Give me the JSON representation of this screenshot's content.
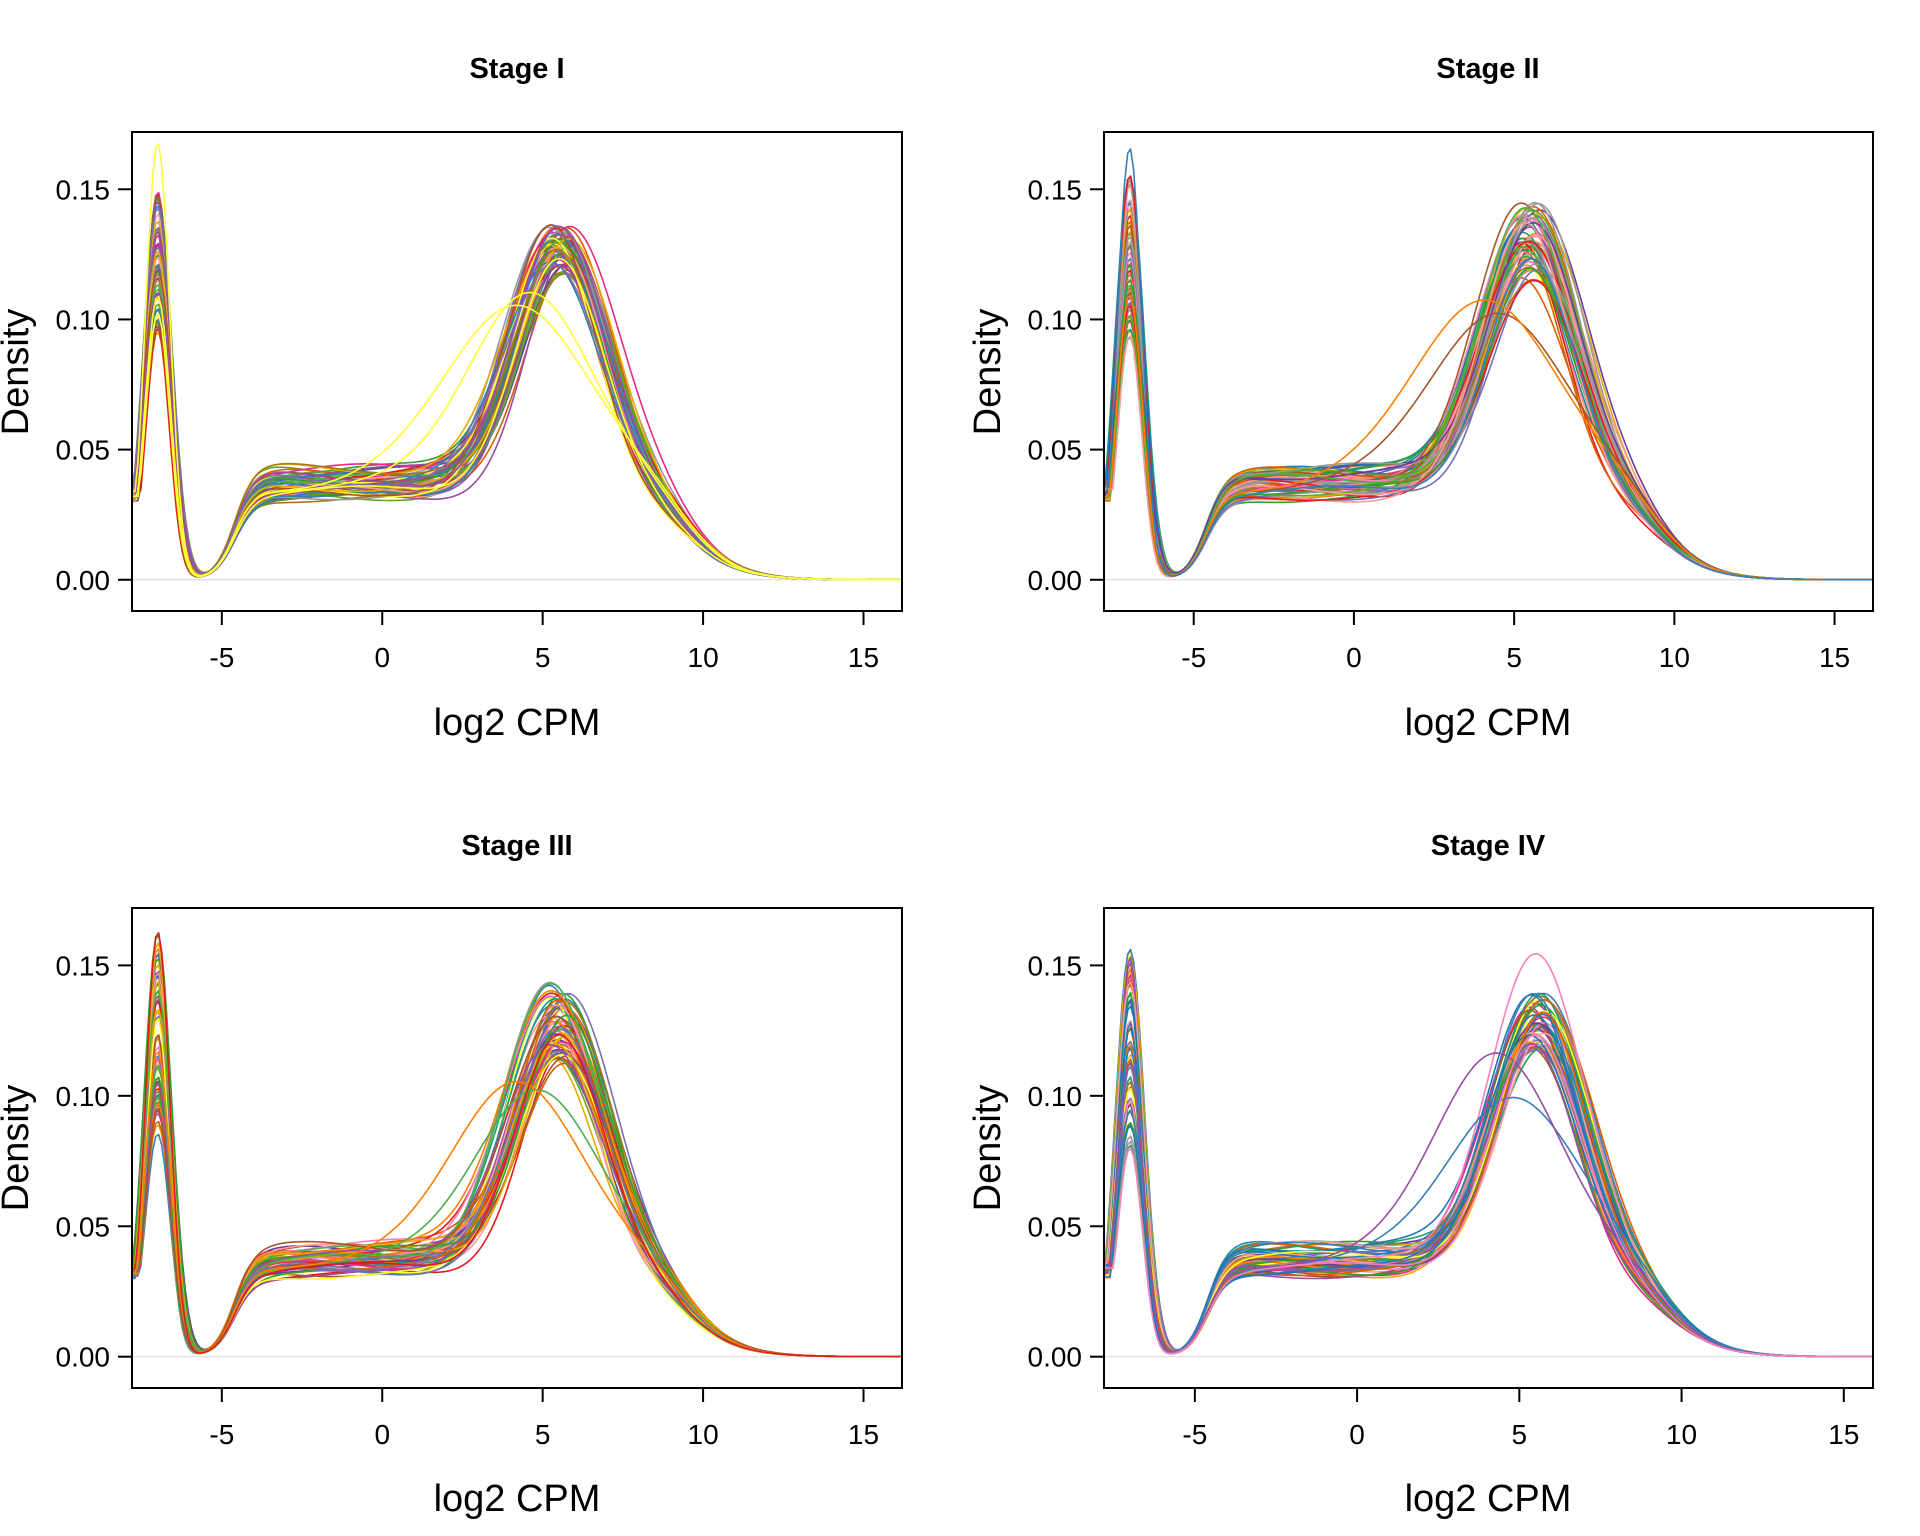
{
  "palette": [
    "#e41a1c",
    "#377eb8",
    "#4daf4a",
    "#984ea3",
    "#ff7f00",
    "#ffff33",
    "#a65628",
    "#f781bf",
    "#999999",
    "#1b9e77",
    "#d95f02",
    "#7570b3",
    "#e7298a",
    "#66a61e",
    "#e6ab02",
    "#a6761d",
    "#1f78b4",
    "#33a02c",
    "#fb9a99",
    "#6a3d9a"
  ],
  "chart_data": [
    {
      "type": "line",
      "title": "Stage I",
      "xlabel": "log2 CPM",
      "ylabel": "Density",
      "xlim": [
        -7.8,
        16.2
      ],
      "ylim": [
        -0.012,
        0.172
      ],
      "xticks": [
        -5,
        0,
        5,
        10,
        15
      ],
      "yticks": [
        0.0,
        0.05,
        0.1,
        0.15
      ],
      "xtick_labels": [
        "-5",
        "0",
        "5",
        "10",
        "15"
      ],
      "ytick_labels": [
        "0.00",
        "0.05",
        "0.10",
        "0.15"
      ],
      "n_series_estimated": 60,
      "representative_shape": {
        "x": [
          -7.8,
          -7.0,
          -5.0,
          -4.0,
          -2.0,
          0.0,
          2.0,
          4.0,
          5.5,
          7.0,
          8.5,
          10.0,
          12.0,
          15.0
        ],
        "y_range_low": [
          0.03,
          0.094,
          0.004,
          0.03,
          0.035,
          0.038,
          0.042,
          0.07,
          0.09,
          0.055,
          0.02,
          0.004,
          0.0005,
          0.0
        ],
        "y_range_high": [
          0.035,
          0.168,
          0.042,
          0.045,
          0.044,
          0.046,
          0.052,
          0.09,
          0.12,
          0.09,
          0.04,
          0.008,
          0.001,
          0.0
        ]
      }
    },
    {
      "type": "line",
      "title": "Stage II",
      "xlabel": "log2 CPM",
      "ylabel": "Density",
      "xlim": [
        -7.8,
        16.2
      ],
      "ylim": [
        -0.012,
        0.172
      ],
      "xticks": [
        -5,
        0,
        5,
        10,
        15
      ],
      "yticks": [
        0.0,
        0.05,
        0.1,
        0.15
      ],
      "xtick_labels": [
        "-5",
        "0",
        "5",
        "10",
        "15"
      ],
      "ytick_labels": [
        "0.00",
        "0.05",
        "0.10",
        "0.15"
      ],
      "n_series_estimated": 60,
      "representative_shape": {
        "x": [
          -7.8,
          -7.0,
          -5.0,
          -4.0,
          -2.0,
          0.0,
          2.0,
          4.0,
          5.5,
          7.0,
          8.5,
          10.0,
          12.0,
          15.0
        ],
        "y_range_low": [
          0.03,
          0.093,
          0.003,
          0.03,
          0.036,
          0.038,
          0.042,
          0.07,
          0.085,
          0.055,
          0.02,
          0.004,
          0.0005,
          0.0
        ],
        "y_range_high": [
          0.035,
          0.166,
          0.045,
          0.047,
          0.045,
          0.046,
          0.055,
          0.09,
          0.128,
          0.09,
          0.04,
          0.008,
          0.001,
          0.0
        ]
      }
    },
    {
      "type": "line",
      "title": "Stage III",
      "xlabel": "log2 CPM",
      "ylabel": "Density",
      "xlim": [
        -7.8,
        16.2
      ],
      "ylim": [
        -0.012,
        0.172
      ],
      "xticks": [
        -5,
        0,
        5,
        10,
        15
      ],
      "yticks": [
        0.0,
        0.05,
        0.1,
        0.15
      ],
      "xtick_labels": [
        "-5",
        "0",
        "5",
        "10",
        "15"
      ],
      "ytick_labels": [
        "0.00",
        "0.05",
        "0.10",
        "0.15"
      ],
      "n_series_estimated": 60,
      "representative_shape": {
        "x": [
          -7.8,
          -7.0,
          -5.0,
          -4.0,
          -2.0,
          0.0,
          2.0,
          4.0,
          5.5,
          7.0,
          8.5,
          10.0,
          12.0,
          15.0
        ],
        "y_range_low": [
          0.028,
          0.083,
          0.003,
          0.025,
          0.033,
          0.038,
          0.042,
          0.07,
          0.085,
          0.055,
          0.02,
          0.004,
          0.0005,
          0.0
        ],
        "y_range_high": [
          0.035,
          0.163,
          0.045,
          0.048,
          0.054,
          0.05,
          0.06,
          0.09,
          0.127,
          0.09,
          0.04,
          0.008,
          0.001,
          0.0
        ]
      }
    },
    {
      "type": "line",
      "title": "Stage IV",
      "xlabel": "log2 CPM",
      "ylabel": "Density",
      "xlim": [
        -7.8,
        15.9
      ],
      "ylim": [
        -0.012,
        0.172
      ],
      "xticks": [
        -5,
        0,
        5,
        10,
        15
      ],
      "yticks": [
        0.0,
        0.05,
        0.1,
        0.15
      ],
      "xtick_labels": [
        "-5",
        "0",
        "5",
        "10",
        "15"
      ],
      "ytick_labels": [
        "0.00",
        "0.05",
        "0.10",
        "0.15"
      ],
      "n_series_estimated": 50,
      "representative_shape": {
        "x": [
          -7.8,
          -7.0,
          -5.0,
          -4.0,
          -2.0,
          0.0,
          2.0,
          4.0,
          5.5,
          7.0,
          8.5,
          10.0,
          12.0,
          15.0
        ],
        "y_range_low": [
          0.028,
          0.08,
          0.004,
          0.03,
          0.036,
          0.04,
          0.045,
          0.075,
          0.084,
          0.055,
          0.02,
          0.004,
          0.0005,
          0.0
        ],
        "y_range_high": [
          0.035,
          0.158,
          0.045,
          0.046,
          0.044,
          0.047,
          0.06,
          0.1,
          0.139,
          0.09,
          0.04,
          0.008,
          0.001,
          0.0
        ]
      }
    }
  ]
}
